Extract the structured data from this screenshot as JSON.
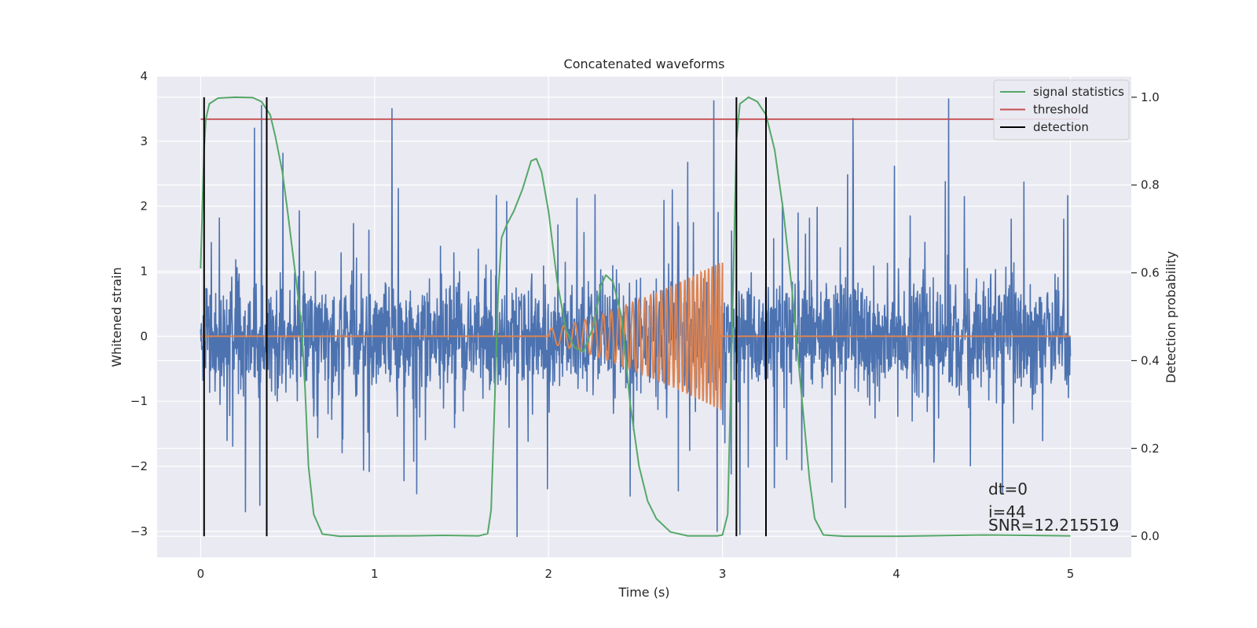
{
  "chart_data": {
    "type": "line",
    "title": "Concatenated waveforms",
    "xlabel": "Time (s)",
    "ylabel": "Whitened strain",
    "y2label": "Detection probability",
    "xlim": [
      -0.25,
      5.35
    ],
    "ylim": [
      -3.4,
      4.0
    ],
    "y2lim": [
      -0.048,
      1.048
    ],
    "xticks": [
      0,
      1,
      2,
      3,
      4,
      5
    ],
    "yticks": [
      -3,
      -2,
      -1,
      0,
      1,
      2,
      3,
      4
    ],
    "y2ticks": [
      0.0,
      0.2,
      0.4,
      0.6,
      0.8,
      1.0
    ],
    "grid": true,
    "legend_position": "top-right",
    "series": [
      {
        "name": "whitened strain",
        "axis": "left",
        "color": "#4c72b0",
        "description": "noise-like strain, roughly ±1.5 with spikes up to about ±3.5",
        "x_range": [
          0,
          5
        ],
        "spikes": [
          [
            0.31,
            3.2
          ],
          [
            0.35,
            3.55
          ],
          [
            1.1,
            3.5
          ],
          [
            2.95,
            3.62
          ],
          [
            3.75,
            3.35
          ],
          [
            4.3,
            3.65
          ],
          [
            0.34,
            -2.6
          ],
          [
            1.82,
            -3.08
          ],
          [
            2.97,
            -3.0
          ],
          [
            3.1,
            -3.05
          ]
        ]
      },
      {
        "name": "injected waveform",
        "axis": "left",
        "color": "#dd8452",
        "description": "zero line with a chirp between 2.0 s and 3.0 s",
        "chirp_start": 2.0,
        "chirp_end": 3.0,
        "chirp_start_amplitude": 0.12,
        "chirp_end_amplitude": 1.15
      },
      {
        "name": "signal statistics",
        "axis": "right",
        "color": "#55a868",
        "points": [
          [
            0.0,
            0.61
          ],
          [
            0.01,
            0.75
          ],
          [
            0.02,
            0.88
          ],
          [
            0.03,
            0.95
          ],
          [
            0.05,
            0.985
          ],
          [
            0.1,
            0.998
          ],
          [
            0.2,
            1.0
          ],
          [
            0.3,
            0.999
          ],
          [
            0.35,
            0.99
          ],
          [
            0.4,
            0.96
          ],
          [
            0.43,
            0.91
          ],
          [
            0.47,
            0.83
          ],
          [
            0.5,
            0.74
          ],
          [
            0.55,
            0.58
          ],
          [
            0.58,
            0.48
          ],
          [
            0.6,
            0.34
          ],
          [
            0.62,
            0.16
          ],
          [
            0.65,
            0.05
          ],
          [
            0.7,
            0.005
          ],
          [
            0.8,
            0.0
          ],
          [
            1.2,
            0.001
          ],
          [
            1.4,
            0.002
          ],
          [
            1.6,
            0.001
          ],
          [
            1.65,
            0.006
          ],
          [
            1.67,
            0.06
          ],
          [
            1.69,
            0.3
          ],
          [
            1.71,
            0.55
          ],
          [
            1.73,
            0.68
          ],
          [
            1.76,
            0.71
          ],
          [
            1.8,
            0.74
          ],
          [
            1.85,
            0.79
          ],
          [
            1.9,
            0.855
          ],
          [
            1.93,
            0.86
          ],
          [
            1.96,
            0.83
          ],
          [
            2.0,
            0.74
          ],
          [
            2.05,
            0.58
          ],
          [
            2.1,
            0.47
          ],
          [
            2.15,
            0.43
          ],
          [
            2.2,
            0.42
          ],
          [
            2.26,
            0.48
          ],
          [
            2.3,
            0.57
          ],
          [
            2.33,
            0.595
          ],
          [
            2.37,
            0.58
          ],
          [
            2.42,
            0.5
          ],
          [
            2.47,
            0.3
          ],
          [
            2.52,
            0.16
          ],
          [
            2.57,
            0.08
          ],
          [
            2.62,
            0.04
          ],
          [
            2.7,
            0.01
          ],
          [
            2.8,
            0.001
          ],
          [
            2.97,
            0.001
          ],
          [
            3.0,
            0.003
          ],
          [
            3.03,
            0.05
          ],
          [
            3.06,
            0.55
          ],
          [
            3.08,
            0.9
          ],
          [
            3.1,
            0.985
          ],
          [
            3.15,
            1.0
          ],
          [
            3.2,
            0.99
          ],
          [
            3.25,
            0.96
          ],
          [
            3.3,
            0.88
          ],
          [
            3.35,
            0.74
          ],
          [
            3.4,
            0.56
          ],
          [
            3.45,
            0.34
          ],
          [
            3.5,
            0.13
          ],
          [
            3.53,
            0.04
          ],
          [
            3.58,
            0.003
          ],
          [
            3.7,
            0.0
          ],
          [
            4.0,
            0.0
          ],
          [
            4.5,
            0.003
          ],
          [
            5.0,
            0.001
          ]
        ]
      },
      {
        "name": "threshold",
        "axis": "right",
        "color": "#c44e52",
        "value": 0.95,
        "x_range": [
          0,
          5.05
        ]
      },
      {
        "name": "detection",
        "axis": "right",
        "color": "#000000",
        "x": [
          0.02,
          0.38,
          3.08,
          3.25
        ],
        "y_range": [
          0,
          1
        ]
      }
    ],
    "legend": [
      "signal statistics",
      "threshold",
      "detection"
    ],
    "annotations": [
      "dt=0",
      "i=44",
      "SNR=12.215519"
    ]
  }
}
